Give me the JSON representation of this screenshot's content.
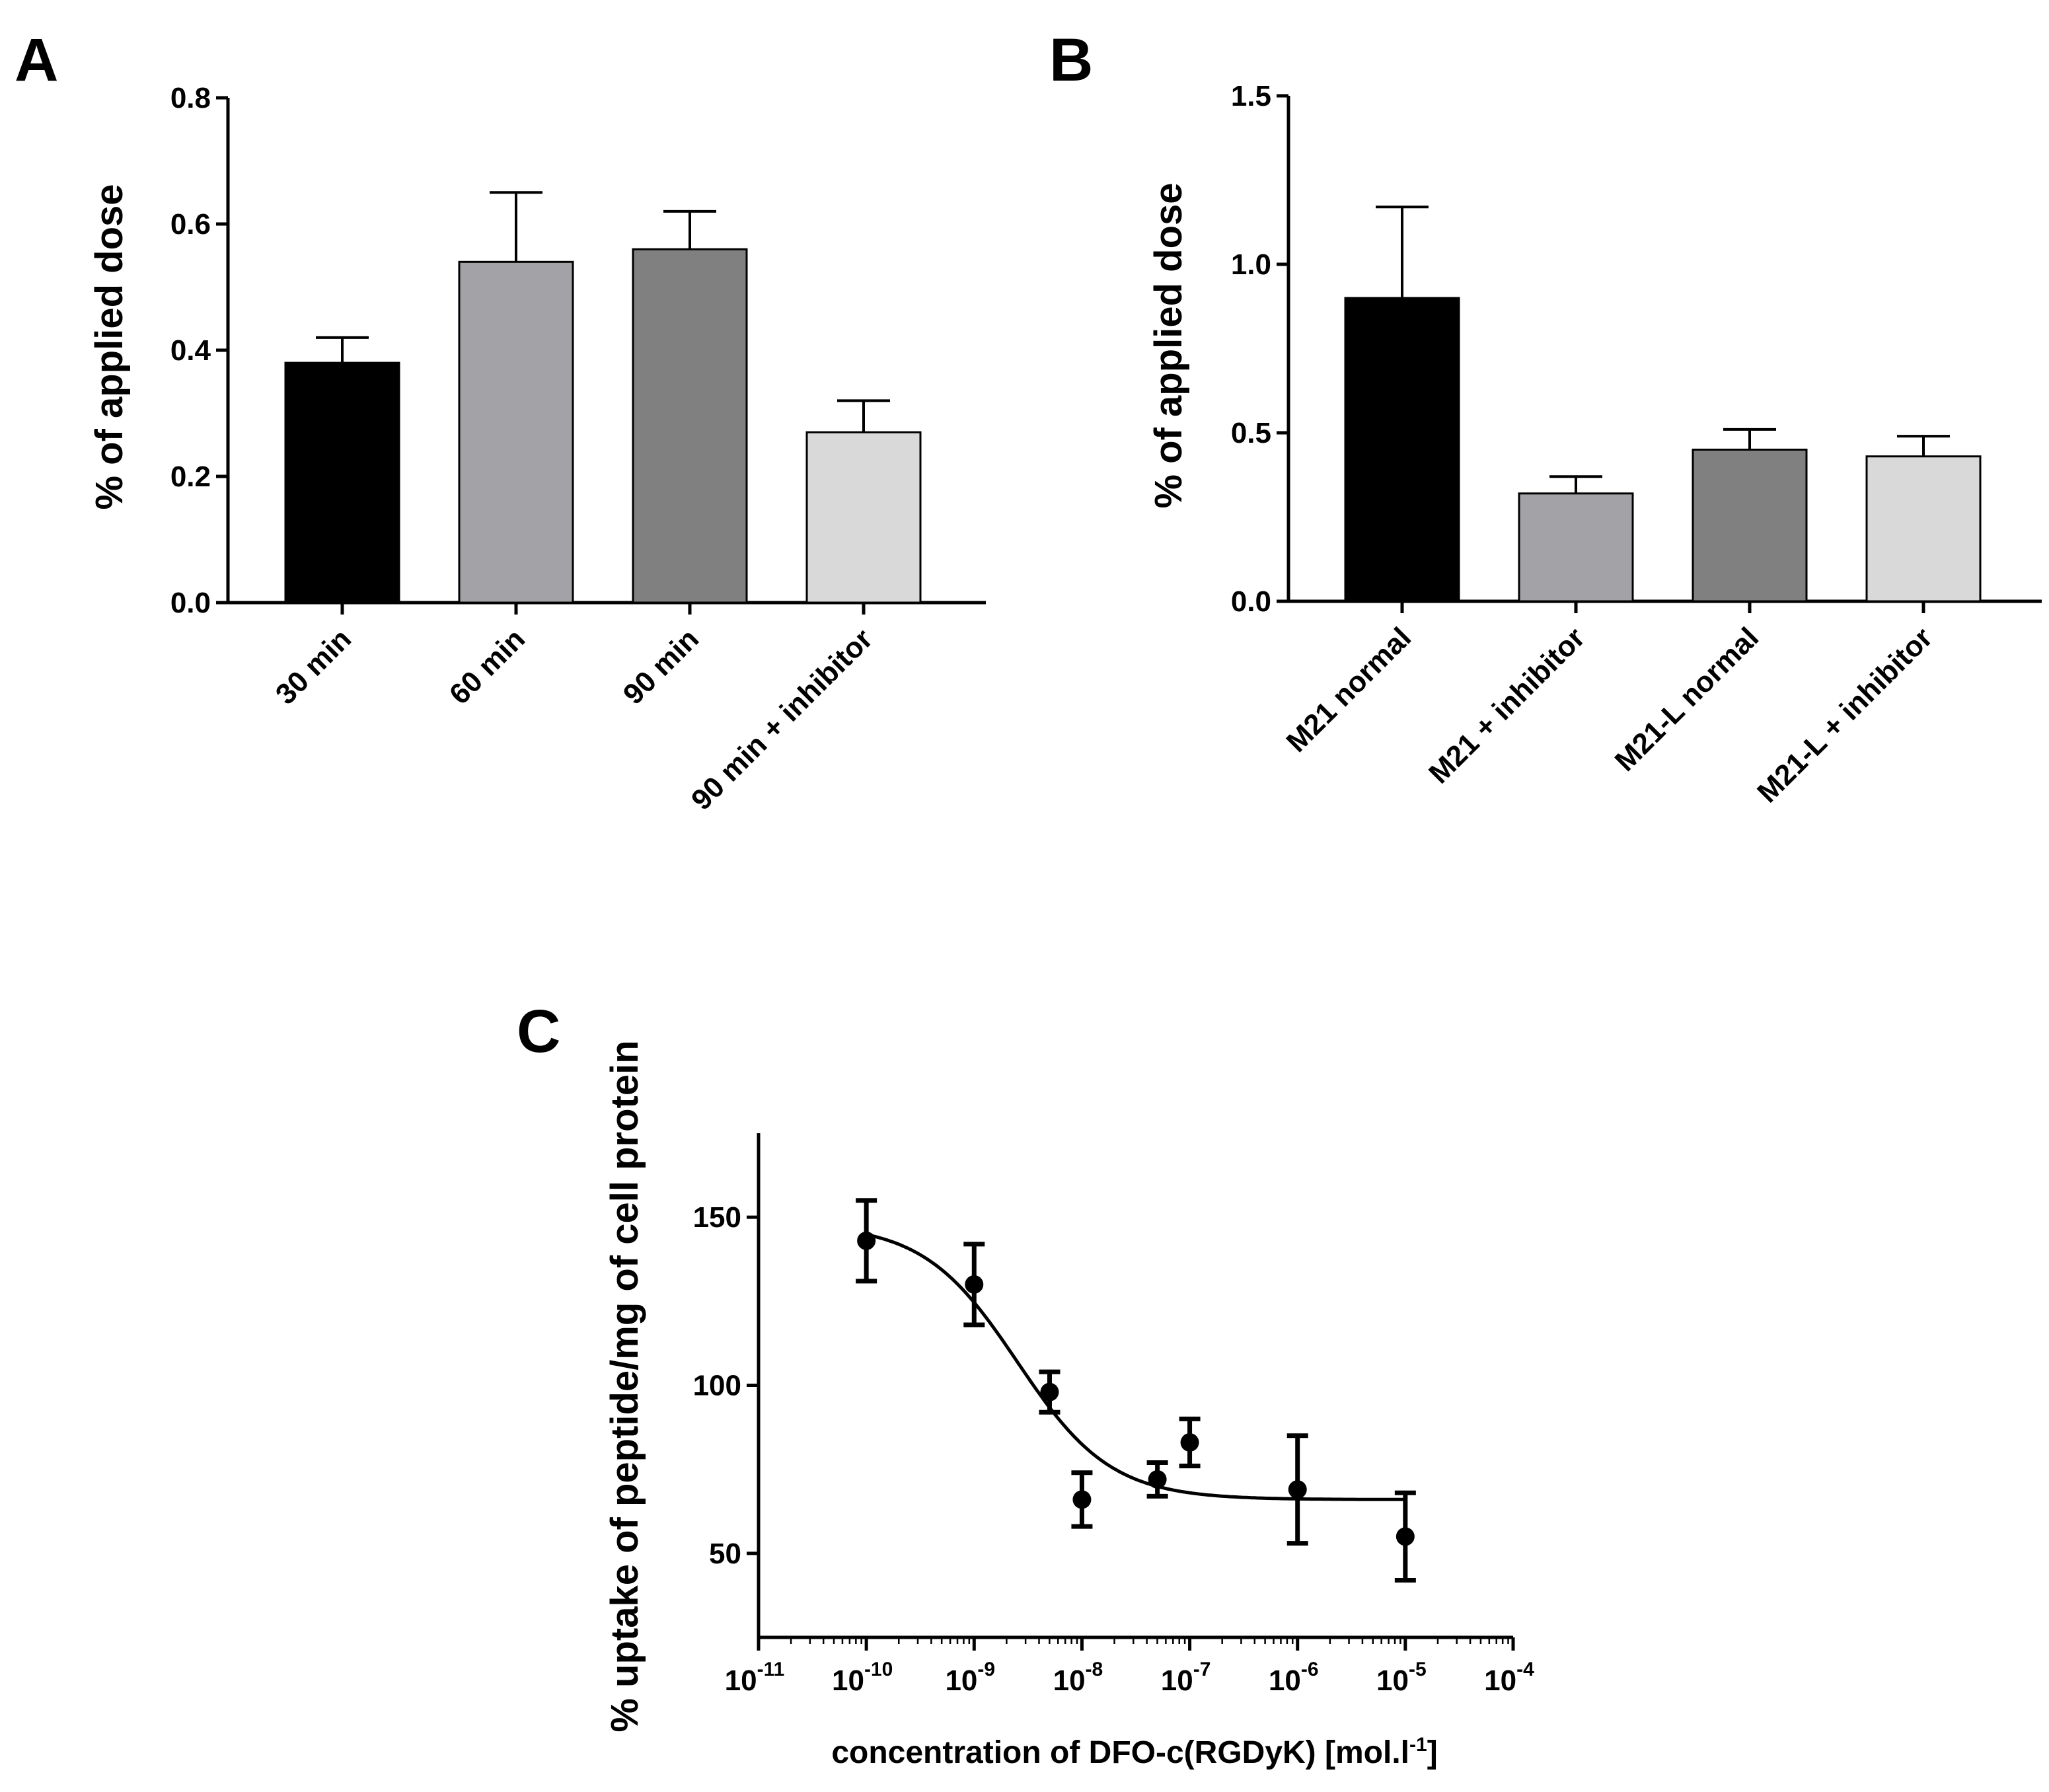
{
  "chart_data": [
    {
      "panel": "A",
      "type": "bar",
      "title": "",
      "xlabel": "",
      "ylabel": "% of applied dose",
      "ylim": [
        0,
        0.8
      ],
      "yticks": [
        "0.0",
        "0.2",
        "0.4",
        "0.6",
        "0.8"
      ],
      "categories": [
        "30 min",
        "60 min",
        "90 min",
        "90 min + inhibitor"
      ],
      "values": [
        0.38,
        0.54,
        0.56,
        0.27
      ],
      "errors": [
        0.04,
        0.11,
        0.06,
        0.05
      ],
      "colors": [
        "#000000",
        "#a3a3a7",
        "#808080",
        "#d9d9d9"
      ]
    },
    {
      "panel": "B",
      "type": "bar",
      "title": "",
      "xlabel": "",
      "ylabel": "% of applied dose",
      "ylim": [
        0,
        1.5
      ],
      "yticks": [
        "0.0",
        "0.5",
        "1.0",
        "1.5"
      ],
      "categories": [
        "M21 normal",
        "M21 + inhibitor",
        "M21-L normal",
        "M21-L + inhibitor"
      ],
      "values": [
        0.9,
        0.32,
        0.45,
        0.43
      ],
      "errors": [
        0.27,
        0.05,
        0.06,
        0.06
      ],
      "colors": [
        "#000000",
        "#a3a3a7",
        "#808080",
        "#d9d9d9"
      ]
    },
    {
      "panel": "C",
      "type": "scatter",
      "title": "",
      "xscale": "log",
      "xlabel": {
        "main": "concentration of DFO-c(RGDyK) [mol.l",
        "sup": "-1",
        "close": "]"
      },
      "ylabel": "% uptake of peptide/mg of cell protein",
      "xlim_exp": [
        -11,
        -4
      ],
      "xtick_exps": [
        "-11",
        "-10",
        "-9",
        "-8",
        "-7",
        "-6",
        "-5",
        "-4"
      ],
      "ylim": [
        25,
        175
      ],
      "yticks": [
        "50",
        "100",
        "150"
      ],
      "points": [
        {
          "x_exp": -10,
          "y": 143,
          "err": 12
        },
        {
          "x_exp": -9,
          "y": 130,
          "err": 12
        },
        {
          "x_exp": -8.3,
          "y": 98,
          "err": 6
        },
        {
          "x_exp": -8,
          "y": 66,
          "err": 8
        },
        {
          "x_exp": -7.3,
          "y": 72,
          "err": 5
        },
        {
          "x_exp": -7,
          "y": 83,
          "err": 7
        },
        {
          "x_exp": -6,
          "y": 69,
          "err": 16
        },
        {
          "x_exp": -5,
          "y": 55,
          "err": 13
        }
      ],
      "fit": {
        "model": "sigmoid",
        "top": 148,
        "bottom": 66,
        "log_ic50": -8.6,
        "hill": 1.0,
        "x_range_exp": [
          -10,
          -5
        ]
      }
    }
  ]
}
